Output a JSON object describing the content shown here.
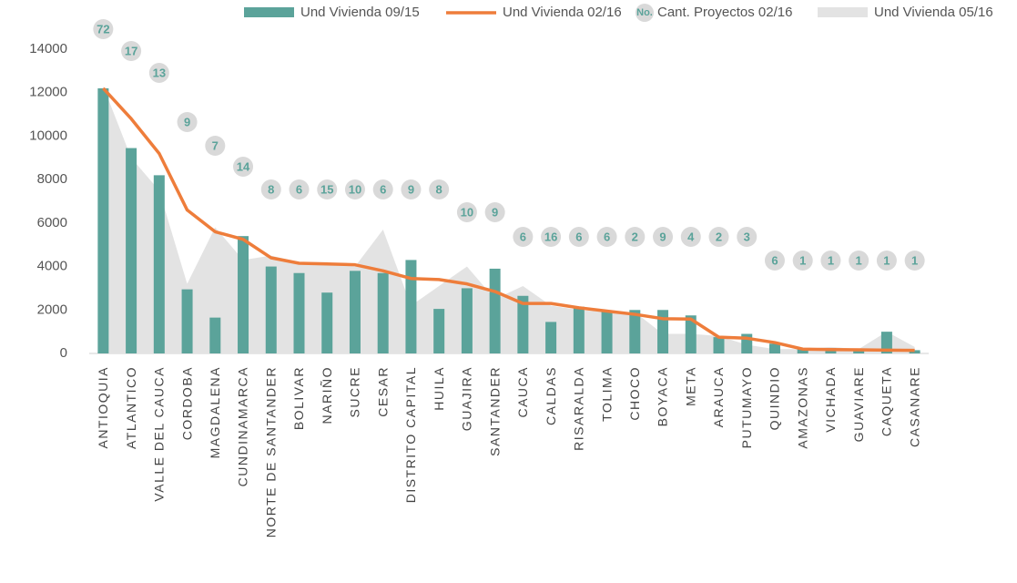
{
  "chart_data": {
    "type": "bar",
    "categories": [
      "ANTIOQUIA",
      "ATLANTICO",
      "VALLE DEL CAUCA",
      "CORDOBA",
      "MAGDALENA",
      "CUNDINAMARCA",
      "NORTE DE SANTANDER",
      "BOLIVAR",
      "NARIÑO",
      "SUCRE",
      "CESAR",
      "DISTRITO CAPITAL",
      "HUILA",
      "GUAJIRA",
      "SANTANDER",
      "CAUCA",
      "CALDAS",
      "RISARALDA",
      "TOLIMA",
      "CHOCO",
      "BOYACA",
      "META",
      "ARAUCA",
      "PUTUMAYO",
      "QUINDIO",
      "AMAZONAS",
      "VICHADA",
      "GUAVIARE",
      "CAQUETA",
      "CASANARE"
    ],
    "series": [
      {
        "name": "Und Vivienda 09/15",
        "type": "bar",
        "color": "#5ba39a",
        "values": [
          12200,
          9450,
          8200,
          2950,
          1650,
          5400,
          4000,
          3700,
          2800,
          3800,
          3700,
          4300,
          2050,
          3000,
          3900,
          2650,
          1450,
          2150,
          1950,
          2000,
          2000,
          1750,
          750,
          900,
          450,
          200,
          250,
          200,
          1000,
          150
        ]
      },
      {
        "name": "Und Vivienda 02/16",
        "type": "line",
        "color": "#ee7d3b",
        "values": [
          12200,
          10800,
          9200,
          6600,
          5600,
          5250,
          4400,
          4150,
          4120,
          4080,
          3800,
          3450,
          3400,
          3200,
          2850,
          2300,
          2300,
          2100,
          1950,
          1800,
          1600,
          1580,
          750,
          700,
          500,
          200,
          180,
          170,
          150,
          140
        ]
      },
      {
        "name": "Cant. Proyectos 02/16",
        "type": "bubble",
        "marker_label": "No.",
        "color": "#d9d9d9",
        "values": [
          72,
          17,
          13,
          9,
          7,
          14,
          8,
          6,
          15,
          10,
          6,
          9,
          8,
          10,
          9,
          6,
          16,
          6,
          6,
          2,
          9,
          4,
          2,
          3,
          6,
          1,
          1,
          1,
          1,
          1
        ]
      },
      {
        "name": "Und Vivienda 05/16",
        "type": "area",
        "color": "#e3e3e3",
        "values": [
          12300,
          9000,
          7500,
          3200,
          5800,
          4300,
          4500,
          4200,
          4200,
          4000,
          5700,
          2200,
          3100,
          4000,
          2500,
          3100,
          2200,
          2000,
          1900,
          1900,
          900,
          900,
          800,
          400,
          200,
          200,
          300,
          200,
          1000,
          300
        ]
      }
    ],
    "ylim": [
      0,
      14000
    ],
    "yticks": [
      0,
      2000,
      4000,
      6000,
      8000,
      10000,
      12000,
      14000
    ]
  }
}
